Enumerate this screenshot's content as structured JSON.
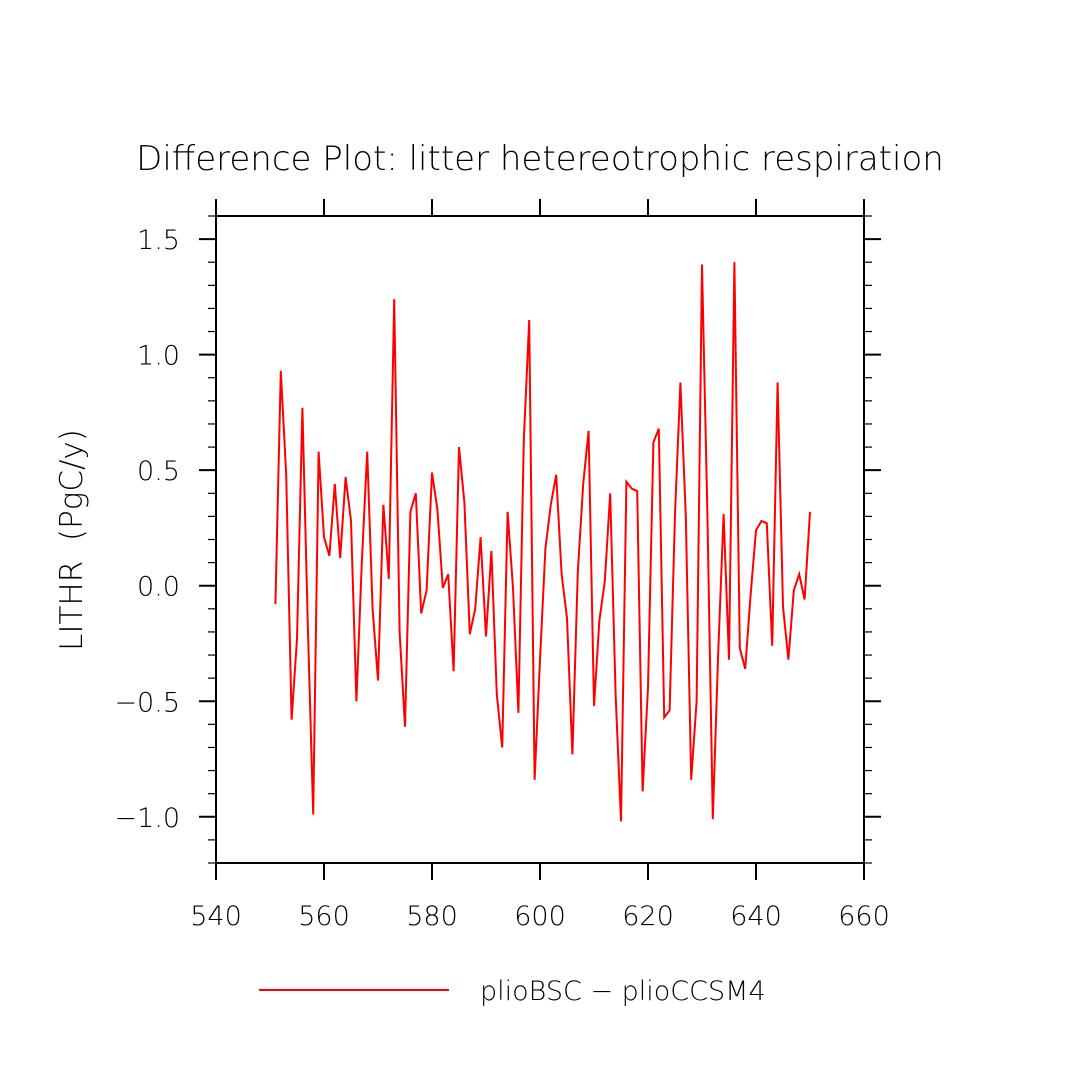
{
  "chart_data": {
    "type": "line",
    "title": "Difference Plot: litter hetereotrophic respiration",
    "xlabel": "",
    "ylabel": "LITHR  (PgC/y)",
    "xlim": [
      540,
      660
    ],
    "ylim": [
      -1.2,
      1.6
    ],
    "xticks": [
      "540",
      "560",
      "580",
      "600",
      "620",
      "640",
      "660"
    ],
    "yticks": [
      "1.5",
      "1.0",
      "0.5",
      "0.0",
      "−0.5",
      "−1.0"
    ],
    "ytick_values": [
      1.5,
      1.0,
      0.5,
      0.0,
      -0.5,
      -1.0
    ],
    "xtick_values": [
      540,
      560,
      580,
      600,
      620,
      640,
      660
    ],
    "line_color": "#ff0000",
    "series": [
      {
        "name": "plioBSC − plioCCSM4",
        "x": [
          551,
          552,
          553,
          554,
          555,
          556,
          557,
          558,
          559,
          560,
          561,
          562,
          563,
          564,
          565,
          566,
          567,
          568,
          569,
          570,
          571,
          572,
          573,
          574,
          575,
          576,
          577,
          578,
          579,
          580,
          581,
          582,
          583,
          584,
          585,
          586,
          587,
          588,
          589,
          590,
          591,
          592,
          593,
          594,
          595,
          596,
          597,
          598,
          599,
          600,
          601,
          602,
          603,
          604,
          605,
          606,
          607,
          608,
          609,
          610,
          611,
          612,
          613,
          614,
          615,
          616,
          617,
          618,
          619,
          620,
          621,
          622,
          623,
          624,
          625,
          626,
          627,
          628,
          629,
          630,
          631,
          632,
          633,
          634,
          635,
          636,
          637,
          638,
          639,
          640,
          641,
          642,
          643,
          644,
          645,
          646,
          647,
          648,
          649,
          650
        ],
        "values": [
          -0.08,
          0.93,
          0.48,
          -0.58,
          -0.23,
          0.77,
          -0.17,
          -0.99,
          0.58,
          0.21,
          0.13,
          0.44,
          0.12,
          0.47,
          0.28,
          -0.5,
          0.1,
          0.58,
          -0.1,
          -0.41,
          0.35,
          0.03,
          1.24,
          -0.2,
          -0.61,
          0.32,
          0.4,
          -0.12,
          -0.02,
          0.49,
          0.33,
          -0.01,
          0.05,
          -0.37,
          0.6,
          0.36,
          -0.21,
          -0.1,
          0.21,
          -0.22,
          0.15,
          -0.47,
          -0.7,
          0.32,
          -0.01,
          -0.55,
          0.63,
          1.15,
          -0.84,
          -0.32,
          0.16,
          0.35,
          0.48,
          0.05,
          -0.14,
          -0.73,
          0.06,
          0.44,
          0.67,
          -0.52,
          -0.15,
          0.02,
          0.4,
          -0.47,
          -1.02,
          0.45,
          0.42,
          0.41,
          -0.89,
          -0.44,
          0.62,
          0.68,
          -0.57,
          -0.54,
          0.31,
          0.88,
          0.3,
          -0.84,
          -0.5,
          1.39,
          0.31,
          -1.01,
          -0.29,
          0.31,
          -0.32,
          1.4,
          -0.27,
          -0.36,
          -0.04,
          0.24,
          0.28,
          0.27,
          -0.26,
          0.88,
          -0.09,
          -0.32,
          -0.02,
          0.05,
          -0.06,
          0.32
        ]
      }
    ],
    "legend_position": "bottom"
  }
}
